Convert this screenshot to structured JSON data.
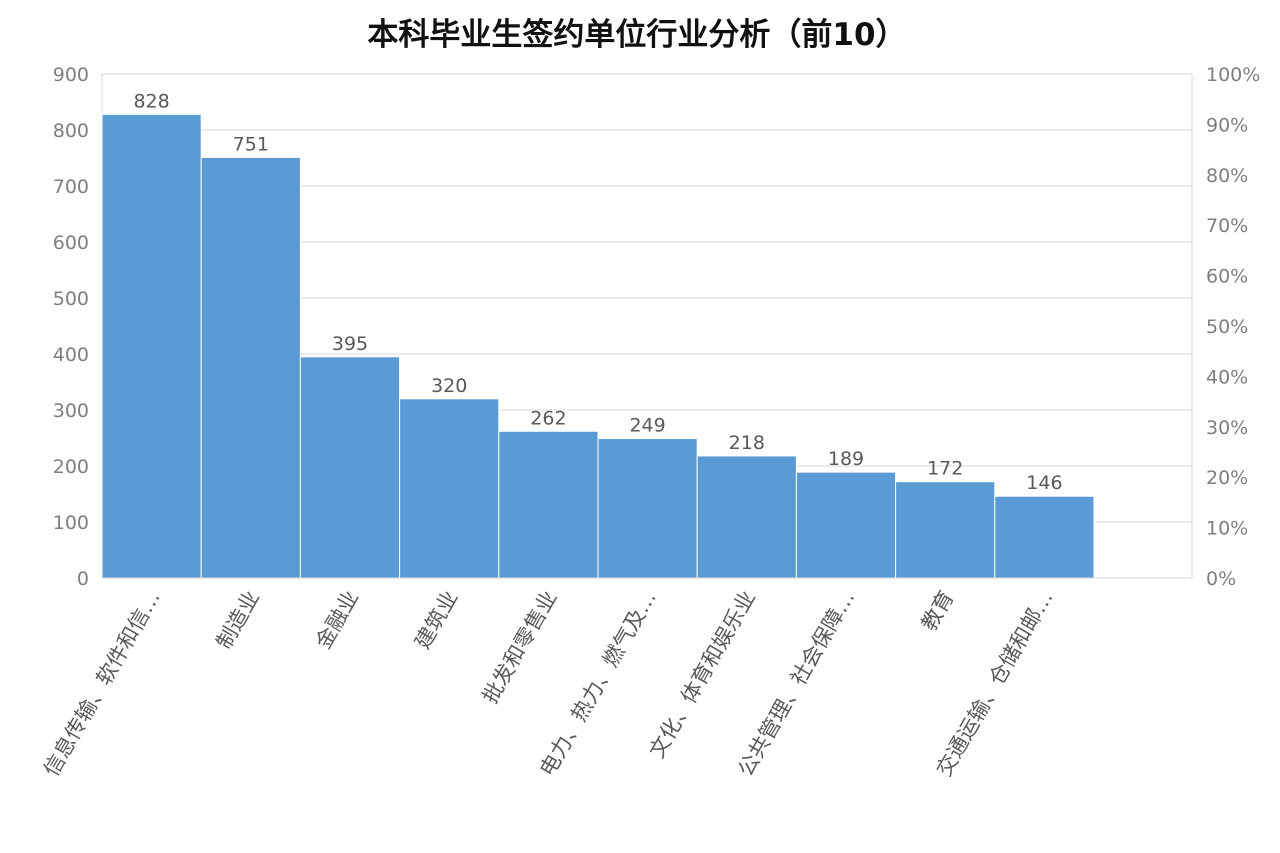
{
  "chart_data": {
    "type": "bar",
    "title": "本科毕业生签约单位行业分析（前10）",
    "categories": [
      "信息传输、软件和信…",
      "制造业",
      "金融业",
      "建筑业",
      "批发和零售业",
      "电力、热力、燃气及…",
      "文化、体育和娱乐业",
      "公共管理、社会保障…",
      "教育",
      "交通运输、仓储和邮…"
    ],
    "values": [
      828,
      751,
      395,
      320,
      262,
      249,
      218,
      189,
      172,
      146
    ],
    "ylim": [
      0,
      900
    ],
    "y_ticks": [
      "0",
      "100",
      "200",
      "300",
      "400",
      "500",
      "600",
      "700",
      "800",
      "900"
    ],
    "y2lim": [
      0,
      1
    ],
    "y2_ticks": [
      "0%",
      "10%",
      "20%",
      "30%",
      "40%",
      "50%",
      "60%",
      "70%",
      "80%",
      "90%",
      "100%"
    ],
    "xlabel": "",
    "ylabel": "",
    "grid": true,
    "legend": "none",
    "bar_color": "#5b9bd5",
    "grid_color": "#d9d9d9"
  }
}
